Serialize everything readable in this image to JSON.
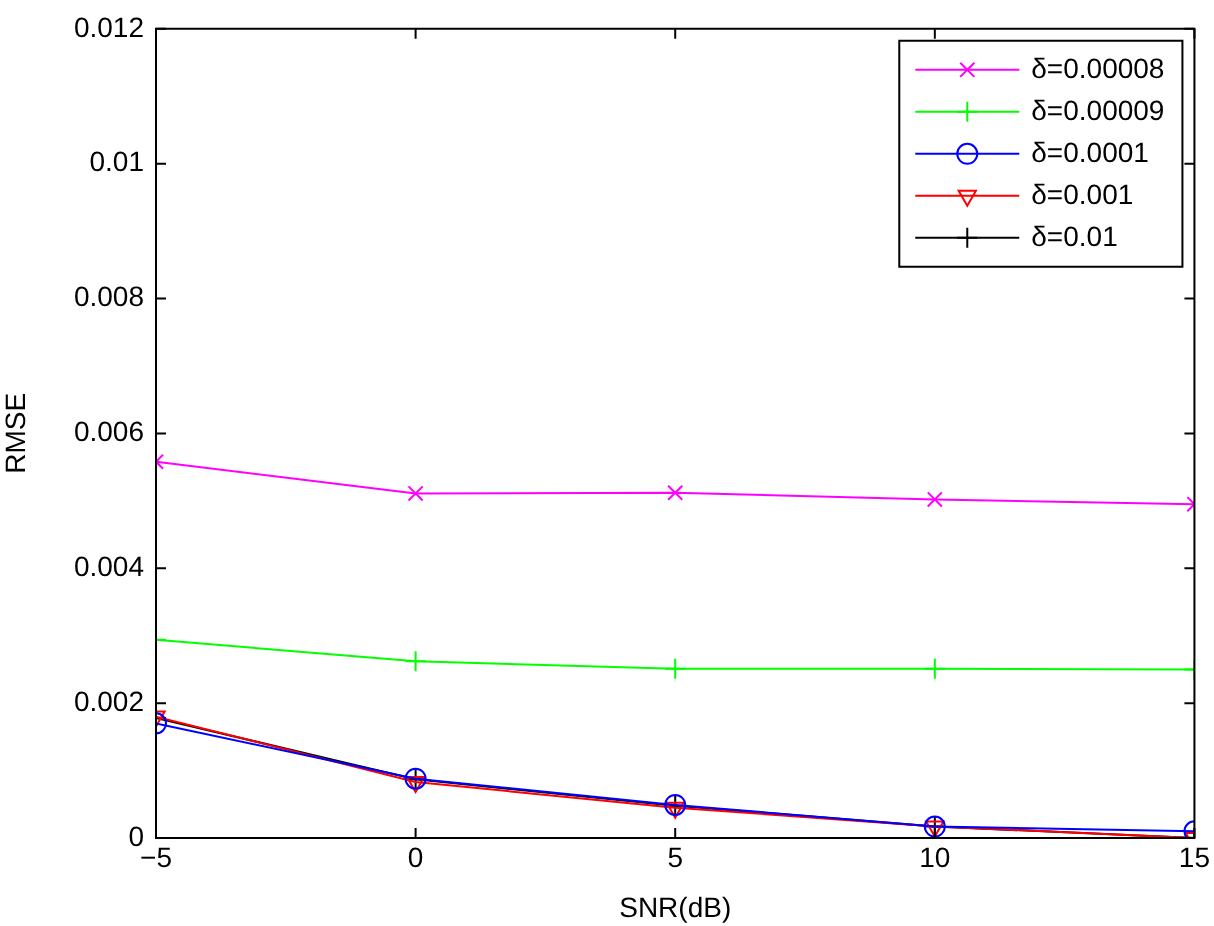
{
  "chart_data": {
    "type": "line",
    "xlabel": "SNR(dB)",
    "ylabel": "RMSE",
    "x": [
      -5,
      0,
      5,
      10,
      15
    ],
    "xlim": [
      -5,
      15
    ],
    "xticks": [
      {
        "value": -5,
        "label": "−5"
      },
      0,
      5,
      10,
      15
    ],
    "ylim": [
      0,
      0.012
    ],
    "yticks": [
      0,
      0.002,
      0.004,
      0.006,
      0.008,
      0.01,
      0.012
    ],
    "grid": false,
    "legend": "top right",
    "line_style": "solid",
    "series": [
      {
        "name": "δ=0.00008",
        "color": "#ff00ff",
        "marker": "x",
        "values": [
          0.00558,
          0.00511,
          0.00512,
          0.00502,
          0.00495
        ]
      },
      {
        "name": "δ=0.00009",
        "color": "#00ff00",
        "marker": "cross",
        "values": [
          0.00294,
          0.00262,
          0.00251,
          0.00251,
          0.0025
        ]
      },
      {
        "name": "δ=0.0001",
        "color": "#0000ff",
        "marker": "circle",
        "values": [
          0.0017,
          0.00088,
          0.00049,
          0.00017,
          0.0001
        ]
      },
      {
        "name": "δ=0.001",
        "color": "#ff0000",
        "marker": "triangle-down",
        "values": [
          0.0018,
          0.00083,
          0.00045,
          0.00017,
          0
        ]
      },
      {
        "name": "δ=0.01",
        "color": "#000000",
        "marker": "cross",
        "values": [
          0.00178,
          0.00087,
          0.00048,
          0.00017,
          0
        ]
      }
    ]
  }
}
